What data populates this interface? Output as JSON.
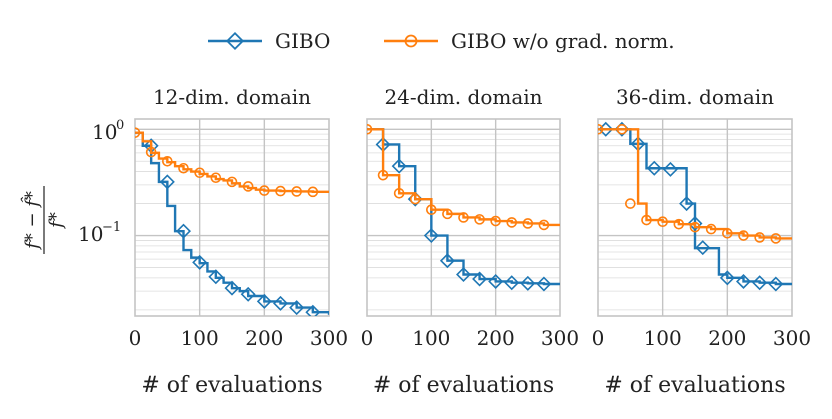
{
  "chart_data": {
    "type": "line",
    "yscale": "log",
    "ylabel_numerator": "f* − f̂*",
    "ylabel_denominator": "f*",
    "legend_position": "top-center",
    "legend": [
      {
        "name": "GIBO",
        "color": "#1f77b4",
        "marker": "diamond"
      },
      {
        "name": "GIBO w/o grad. norm.",
        "color": "#ff7f0e",
        "marker": "circle"
      }
    ],
    "y_tick_labels": [
      "10",
      "10"
    ],
    "y_tick_exponents": [
      "0",
      "−1"
    ],
    "panels": [
      {
        "title": "12-dim. domain",
        "xlabel": "# of evaluations",
        "x_ticks": [
          "0",
          "100",
          "200",
          "300"
        ],
        "xlim": [
          0,
          300
        ],
        "ylim": [
          0.0175,
          1.25
        ],
        "series": [
          {
            "name": "GIBO",
            "x": [
              0,
              12,
              25,
              37,
              50,
              62,
              75,
              87,
              100,
              112,
              125,
              137,
              150,
              162,
              175,
              200,
              225,
              250,
              275,
              300
            ],
            "y": [
              0.93,
              0.7,
              0.48,
              0.32,
              0.19,
              0.11,
              0.073,
              0.062,
              0.055,
              0.046,
              0.04,
              0.036,
              0.032,
              0.03,
              0.027,
              0.024,
              0.023,
              0.021,
              0.019,
              0.018
            ],
            "markers_x": [
              25,
              50,
              75,
              100,
              125,
              150,
              175,
              200,
              225,
              250,
              275
            ],
            "markers_y": [
              0.7,
              0.32,
              0.11,
              0.056,
              0.041,
              0.032,
              0.028,
              0.024,
              0.023,
              0.021,
              0.019
            ]
          },
          {
            "name": "GIBO w/o grad. norm.",
            "x": [
              0,
              12,
              25,
              37,
              50,
              62,
              75,
              87,
              100,
              112,
              125,
              137,
              150,
              162,
              175,
              187,
              200,
              225,
              250,
              275,
              300
            ],
            "y": [
              0.93,
              0.77,
              0.6,
              0.53,
              0.49,
              0.45,
              0.42,
              0.4,
              0.38,
              0.36,
              0.34,
              0.33,
              0.31,
              0.29,
              0.28,
              0.27,
              0.265,
              0.262,
              0.26,
              0.258,
              0.256
            ],
            "markers_x": [
              0,
              25,
              50,
              75,
              100,
              125,
              150,
              175,
              200,
              225,
              250,
              275
            ],
            "markers_y": [
              0.93,
              0.61,
              0.5,
              0.43,
              0.39,
              0.35,
              0.32,
              0.29,
              0.265,
              0.262,
              0.26,
              0.258
            ]
          }
        ]
      },
      {
        "title": "24-dim. domain",
        "xlabel": "# of evaluations",
        "x_ticks": [
          "0",
          "100",
          "200",
          "300"
        ],
        "xlim": [
          0,
          300
        ],
        "ylim": [
          0.0175,
          1.25
        ],
        "series": [
          {
            "name": "GIBO",
            "x": [
              0,
              25,
              50,
              75,
              100,
              125,
              150,
              175,
              200,
              225,
              250,
              275,
              300
            ],
            "y": [
              1.0,
              0.72,
              0.45,
              0.22,
              0.1,
              0.058,
              0.043,
              0.039,
              0.037,
              0.036,
              0.0355,
              0.035,
              0.035
            ],
            "markers_x": [
              25,
              50,
              75,
              100,
              125,
              150,
              175,
              200,
              225,
              250,
              275
            ],
            "markers_y": [
              0.72,
              0.45,
              0.22,
              0.1,
              0.058,
              0.043,
              0.039,
              0.037,
              0.036,
              0.0355,
              0.035
            ]
          },
          {
            "name": "GIBO w/o grad. norm.",
            "x": [
              0,
              25,
              50,
              75,
              100,
              125,
              150,
              175,
              200,
              225,
              250,
              275,
              300
            ],
            "y": [
              1.0,
              0.37,
              0.25,
              0.22,
              0.175,
              0.16,
              0.148,
              0.142,
              0.137,
              0.133,
              0.13,
              0.126,
              0.125
            ],
            "markers_x": [
              0,
              25,
              50,
              75,
              100,
              125,
              150,
              175,
              200,
              225,
              250,
              275
            ],
            "markers_y": [
              1.0,
              0.37,
              0.25,
              0.22,
              0.175,
              0.16,
              0.148,
              0.142,
              0.137,
              0.133,
              0.13,
              0.126
            ]
          }
        ]
      },
      {
        "title": "36-dim. domain",
        "xlabel": "# of evaluations",
        "x_ticks": [
          "0",
          "100",
          "200",
          "300"
        ],
        "xlim": [
          0,
          300
        ],
        "ylim": [
          0.0175,
          1.25
        ],
        "series": [
          {
            "name": "GIBO",
            "x": [
              0,
              25,
              50,
              75,
              112,
              137,
              150,
              187,
              200,
              225,
              250,
              275,
              300
            ],
            "y": [
              1.0,
              1.0,
              0.73,
              0.43,
              0.43,
              0.2,
              0.076,
              0.043,
              0.04,
              0.037,
              0.036,
              0.035,
              0.035
            ],
            "markers_x": [
              12,
              37,
              62,
              87,
              112,
              137,
              150,
              162,
              200,
              225,
              250,
              275
            ],
            "markers_y": [
              1.0,
              1.0,
              0.73,
              0.43,
              0.42,
              0.2,
              0.13,
              0.077,
              0.04,
              0.037,
              0.036,
              0.035
            ]
          },
          {
            "name": "GIBO w/o grad. norm.",
            "x": [
              0,
              37,
              62,
              75,
              100,
              125,
              150,
              175,
              200,
              225,
              250,
              275,
              300
            ],
            "y": [
              1.0,
              1.0,
              0.2,
              0.14,
              0.135,
              0.128,
              0.12,
              0.115,
              0.105,
              0.1,
              0.096,
              0.094,
              0.093
            ],
            "markers_x": [
              0,
              37,
              50,
              75,
              100,
              125,
              150,
              175,
              200,
              225,
              250,
              275
            ],
            "markers_y": [
              1.0,
              1.0,
              0.2,
              0.14,
              0.135,
              0.128,
              0.12,
              0.115,
              0.105,
              0.1,
              0.096,
              0.094
            ]
          }
        ]
      }
    ]
  }
}
